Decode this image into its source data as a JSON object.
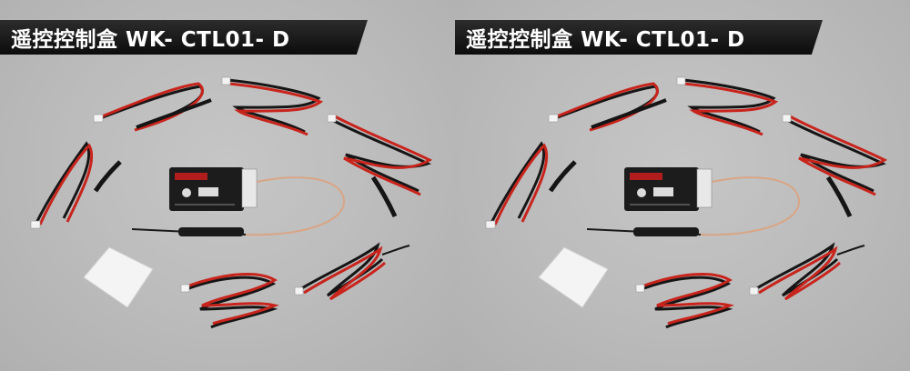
{
  "banner": {
    "title": "遥控控制盒 WK- CTL01- D"
  },
  "photo": {
    "subject": "receiver-module-with-servo-cables",
    "colors": {
      "background": "#bdbdbd",
      "wire_red": "#c8241c",
      "wire_black": "#151515",
      "receiver_body": "#1c1c1c",
      "antenna": "#d9a585",
      "pad": "#f4f4f4"
    }
  }
}
